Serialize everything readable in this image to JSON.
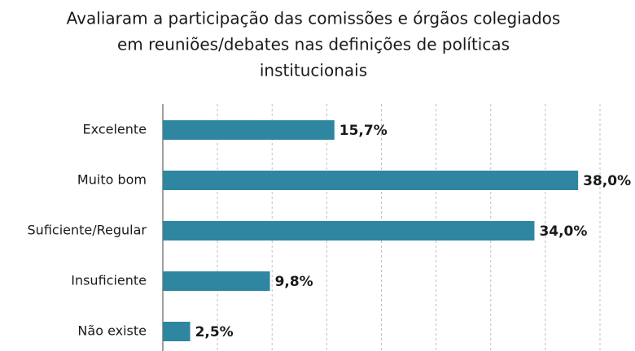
{
  "chart_data": {
    "type": "hbar",
    "title": [
      "Avaliaram a participação das comissões e órgãos colegiados",
      "em reuniões/debates nas definições de políticas",
      "institucionais"
    ],
    "categories": [
      "Excelente",
      "Muito bom",
      "Suficiente/Regular",
      "Insuficiente",
      "Não existe"
    ],
    "values": [
      15.7,
      38.0,
      34.0,
      9.8,
      2.5
    ],
    "value_labels": [
      "15,7%",
      "38,0%",
      "34,0%",
      "9,8%",
      "2,5%"
    ],
    "color": "#2e86a0",
    "xlim": [
      0,
      40
    ],
    "xticks": [
      0,
      5,
      10,
      15,
      20,
      25,
      30,
      35,
      40
    ],
    "grid": true
  }
}
